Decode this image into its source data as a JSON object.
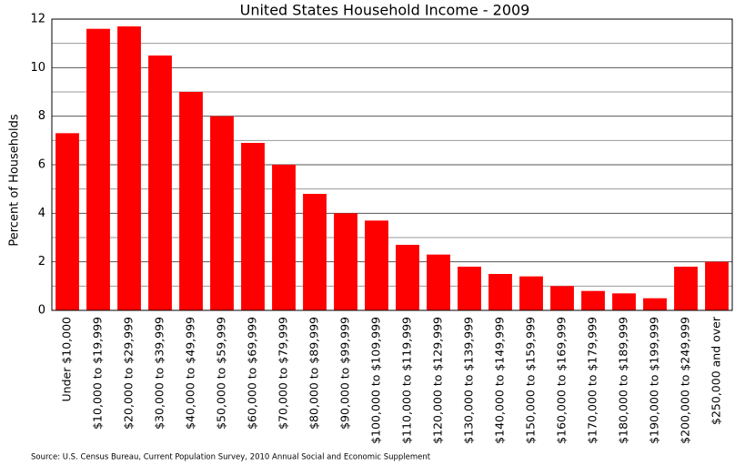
{
  "chart_data": {
    "type": "bar",
    "title": "United States Household Income - 2009",
    "y_label": "Percent of Households",
    "source": "Source: U.S. Census Bureau, Current Population Survey, 2010 Annual Social and Economic Supplement",
    "categories": [
      "Under $10,000",
      "$10,000 to $19,999",
      "$20,000 to $29,999",
      "$30,000 to $39,999",
      "$40,000 to $49,999",
      "$50,000 to $59,999",
      "$60,000 to $69,999",
      "$70,000 to $79,999",
      "$80,000 to $89,999",
      "$90,000 to $99,999",
      "$100,000 to $109,999",
      "$110,000 to $119,999",
      "$120,000 to $129,999",
      "$130,000 to $139,999",
      "$140,000 to $149,999",
      "$150,000 to $159,999",
      "$160,000 to $169,999",
      "$170,000 to $179,999",
      "$180,000 to $189,999",
      "$190,000 to $199,999",
      "$200,000 to $249,999",
      "$250,000 and over"
    ],
    "values": [
      7.3,
      11.6,
      11.7,
      10.5,
      9.0,
      8.0,
      6.9,
      6.0,
      4.8,
      4.0,
      3.7,
      2.7,
      2.3,
      1.8,
      1.5,
      1.4,
      1.0,
      0.8,
      0.7,
      0.5,
      1.8,
      2.0
    ],
    "color": "#ff0000",
    "ylim": [
      0,
      12
    ],
    "yticks": [
      0,
      2,
      4,
      6,
      8,
      10,
      12
    ],
    "minor_yticks": [
      1,
      3,
      5,
      7,
      9,
      11
    ],
    "grid": true
  }
}
